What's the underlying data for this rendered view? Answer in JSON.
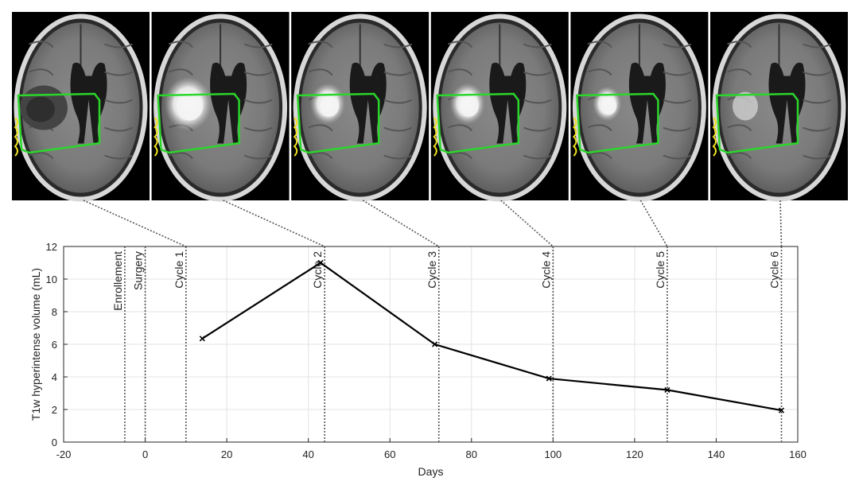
{
  "chart_data": {
    "type": "line",
    "xlabel": "Days",
    "ylabel": "T1w hyperintense volume (mL)",
    "xlim": [
      -20,
      160
    ],
    "ylim": [
      0,
      12
    ],
    "xticks": [
      -20,
      0,
      20,
      40,
      60,
      80,
      100,
      120,
      140,
      160
    ],
    "yticks": [
      0,
      2,
      4,
      6,
      8,
      10,
      12
    ],
    "grid": true,
    "series": [
      {
        "x": [
          14,
          43,
          71,
          99,
          128,
          156
        ],
        "y": [
          6.35,
          11.0,
          6.0,
          3.9,
          3.2,
          1.95
        ],
        "color": "#000000",
        "marker": "x"
      }
    ],
    "events": [
      {
        "label": "Enrollement",
        "x": -5
      },
      {
        "label": "Surgery",
        "x": 0
      },
      {
        "label": "Cycle 1",
        "x": 10
      },
      {
        "label": "Cycle 2",
        "x": 44
      },
      {
        "label": "Cycle 3",
        "x": 72
      },
      {
        "label": "Cycle 4",
        "x": 100
      },
      {
        "label": "Cycle 5",
        "x": 128
      },
      {
        "label": "Cycle 6",
        "x": 156
      }
    ],
    "connectors": [
      {
        "panel": 0,
        "event": "Cycle 1"
      },
      {
        "panel": 1,
        "event": "Cycle 2"
      },
      {
        "panel": 2,
        "event": "Cycle 3"
      },
      {
        "panel": 3,
        "event": "Cycle 4"
      },
      {
        "panel": 4,
        "event": "Cycle 5"
      },
      {
        "panel": 5,
        "event": "Cycle 6"
      }
    ]
  },
  "images": {
    "count": 6,
    "panels": [
      {
        "name": "mri-panel-1",
        "lesion": "dark"
      },
      {
        "name": "mri-panel-2",
        "lesion": "bright"
      },
      {
        "name": "mri-panel-3",
        "lesion": "bright"
      },
      {
        "name": "mri-panel-4",
        "lesion": "bright"
      },
      {
        "name": "mri-panel-5",
        "lesion": "bright"
      },
      {
        "name": "mri-panel-6",
        "lesion": "faint"
      }
    ],
    "roi_color": "#2bd62b",
    "margin_color": "#f0e020"
  }
}
